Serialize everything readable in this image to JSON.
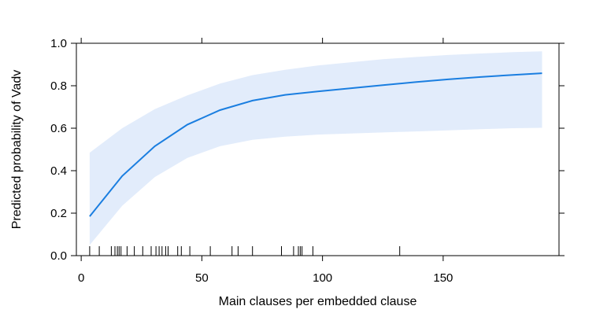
{
  "chart_data": {
    "type": "line",
    "title": "",
    "xlabel": "Main clauses per embedded clause",
    "ylabel": "Predicted probability of Vadv",
    "xlim": [
      -2,
      198
    ],
    "ylim": [
      0,
      1
    ],
    "x_ticks": [
      0,
      50,
      100,
      150
    ],
    "y_ticks": [
      0.0,
      0.2,
      0.4,
      0.6,
      0.8,
      1.0
    ],
    "x_tick_labels": [
      "0",
      "50",
      "100",
      "150"
    ],
    "y_tick_labels": [
      "0.0",
      "0.2",
      "0.4",
      "0.6",
      "0.8",
      "1.0"
    ],
    "grid": false,
    "series": [
      {
        "color": "#1a7ee0",
        "band_color": "#e2ecfb",
        "x": [
          3.5,
          17,
          30.5,
          44,
          57.5,
          71,
          84.5,
          98,
          111.5,
          125,
          138.5,
          152,
          165.5,
          179,
          191
        ],
        "y": [
          0.185,
          0.375,
          0.515,
          0.617,
          0.685,
          0.73,
          0.757,
          0.773,
          0.788,
          0.803,
          0.817,
          0.83,
          0.841,
          0.851,
          0.859
        ],
        "lower": [
          0.05,
          0.235,
          0.37,
          0.46,
          0.515,
          0.545,
          0.56,
          0.57,
          0.575,
          0.58,
          0.585,
          0.59,
          0.595,
          0.6,
          0.602
        ],
        "upper": [
          0.485,
          0.6,
          0.69,
          0.755,
          0.81,
          0.85,
          0.875,
          0.895,
          0.91,
          0.925,
          0.935,
          0.945,
          0.952,
          0.958,
          0.962
        ]
      }
    ],
    "rug_x": [
      3.5,
      7.5,
      12.5,
      14,
      15,
      15.7,
      16.5,
      19,
      22,
      25.5,
      29,
      31,
      32.3,
      33.5,
      35,
      36,
      40,
      41.5,
      45,
      53.5,
      62.5,
      65,
      71,
      83,
      88,
      90,
      90.8,
      91.5,
      96,
      132,
      198
    ]
  }
}
